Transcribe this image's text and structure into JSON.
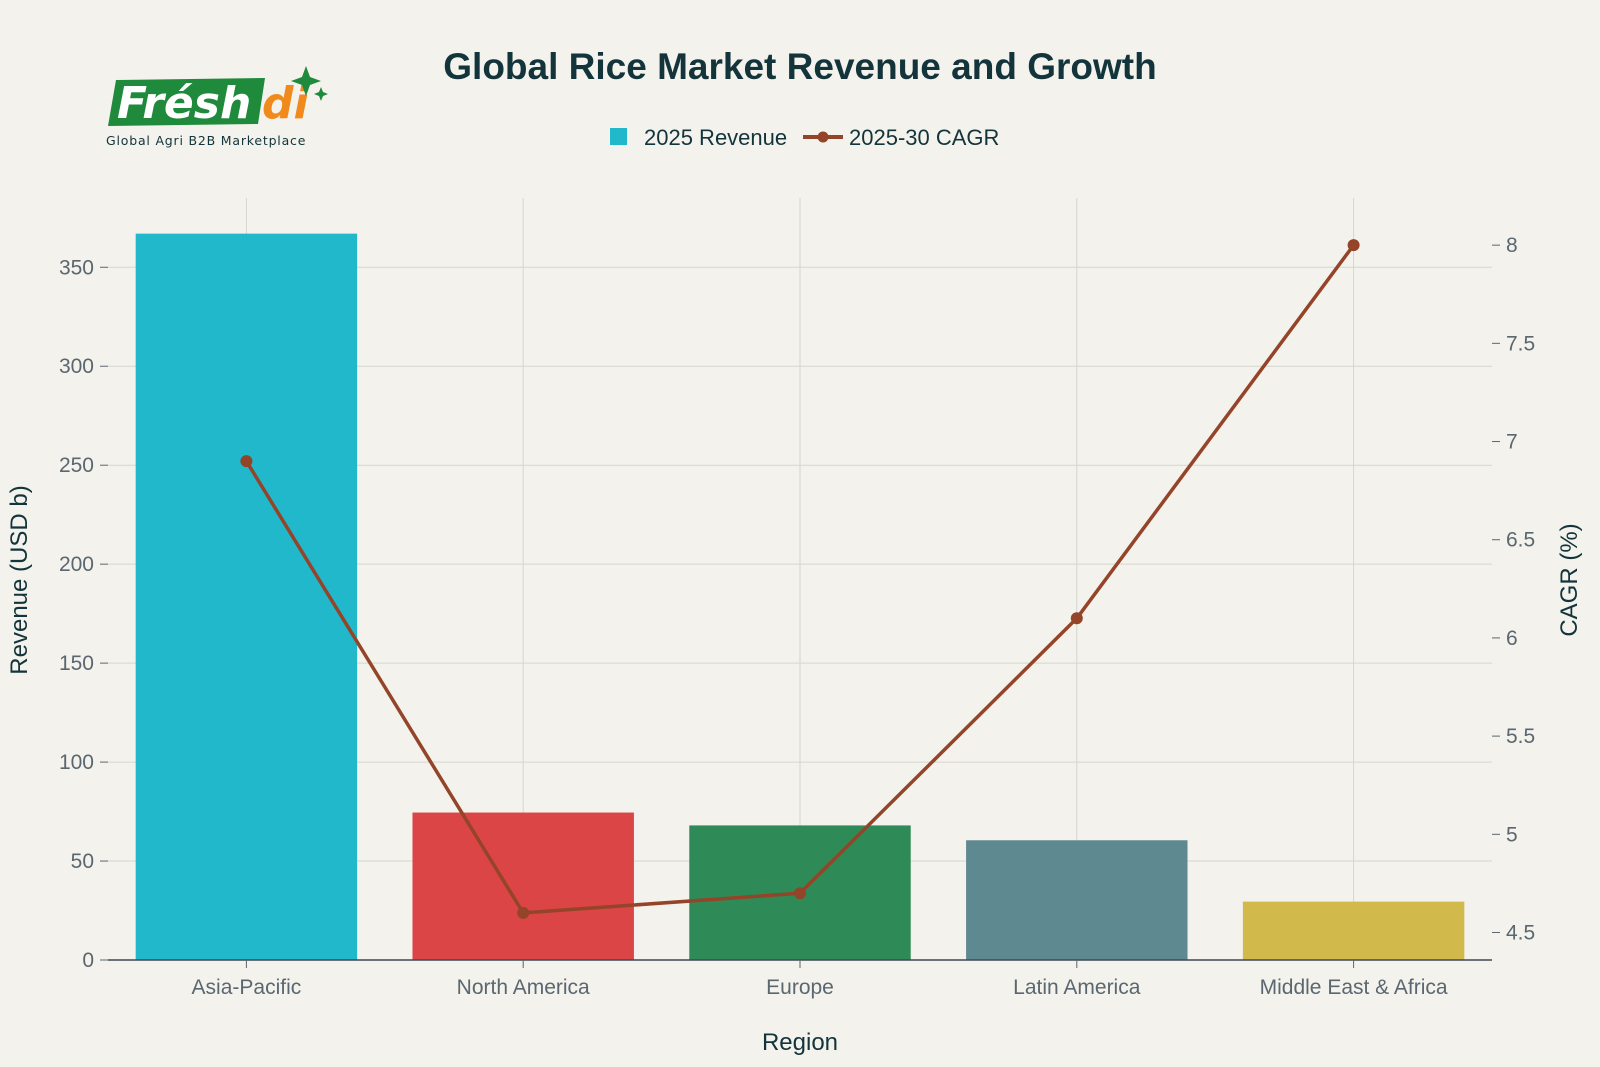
{
  "logo": {
    "wordmark_main": "Frésh",
    "wordmark_accent": "di",
    "tagline": "Global Agri B2B Marketplace",
    "colors": {
      "green": "#1f8a3b",
      "orange": "#f08a1c"
    }
  },
  "chart_data": {
    "type": "bar",
    "title": "Global Rice Market Revenue and Growth",
    "xlabel": "Region",
    "ylabel": "Revenue (USD b)",
    "y2label": "CAGR (%)",
    "categories": [
      "Asia-Pacific",
      "North America",
      "Europe",
      "Latin America",
      "Middle East & Africa"
    ],
    "series": [
      {
        "name": "2025 Revenue",
        "type": "bar",
        "axis": "left",
        "values": [
          367,
          74.5,
          68,
          60.5,
          29.5
        ],
        "colors": [
          "#21b8cc",
          "#db4545",
          "#2e8b57",
          "#5e8990",
          "#d2b94c"
        ]
      },
      {
        "name": "2025-30 CAGR",
        "type": "line",
        "axis": "right",
        "values": [
          6.9,
          4.6,
          4.7,
          6.1,
          8.0
        ],
        "color": "#944428"
      }
    ],
    "ylim": [
      0,
      385
    ],
    "yticks": [
      0,
      50,
      100,
      150,
      200,
      250,
      300,
      350
    ],
    "y2lim": [
      4.36,
      8.24
    ],
    "y2ticks": [
      4.5,
      5,
      5.5,
      6,
      6.5,
      7,
      7.5,
      8
    ],
    "y2tick_labels": [
      "4.5",
      "5",
      "5.5",
      "6",
      "6.5",
      "7",
      "7.5",
      "8"
    ],
    "grid": true,
    "legend_position": "top-center"
  }
}
